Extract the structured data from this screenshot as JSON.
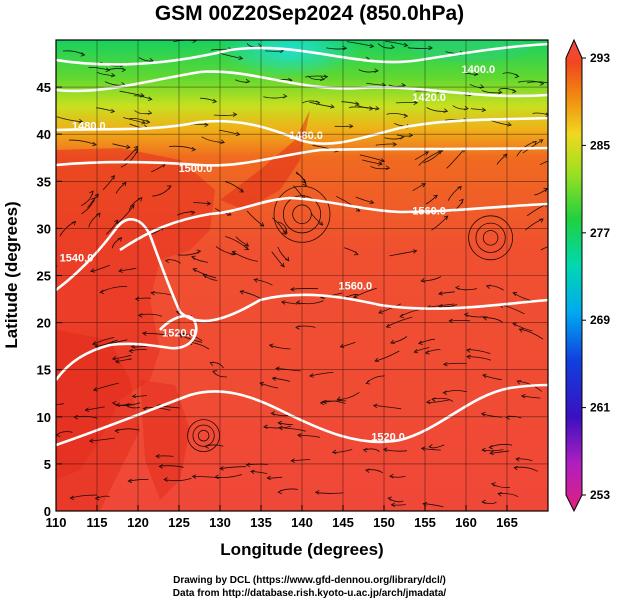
{
  "title": "GSM 00Z20Sep2024 (850.0hPa)",
  "xlabel": "Longitude (degrees)",
  "ylabel": "Latitude (degrees)",
  "credits": {
    "line1": "Drawing by DCL (https://www.gfd-dennou.org/library/dcl/)",
    "line2": "Data from http://database.rish.kyoto-u.ac.jp/arch/jmadata/"
  },
  "chart_data": {
    "type": "heatmap",
    "x_range": [
      110,
      170
    ],
    "y_range": [
      0,
      50
    ],
    "x_ticks": [
      110,
      115,
      120,
      125,
      130,
      135,
      140,
      145,
      150,
      155,
      160,
      165
    ],
    "y_ticks": [
      0,
      5,
      10,
      15,
      20,
      25,
      30,
      35,
      40,
      45
    ],
    "grid": true,
    "colorbar": {
      "min": 253,
      "max": 293,
      "tick_labels": [
        "293",
        "285",
        "277",
        "269",
        "261",
        "253"
      ],
      "colors": [
        "#e0207a",
        "#b81fb0",
        "#4a10b8",
        "#2030d8",
        "#1070f0",
        "#00b0f0",
        "#00d8b8",
        "#20d040",
        "#60d830",
        "#b0e020",
        "#f0e020",
        "#f8b010",
        "#f07010",
        "#f04020",
        "#f04848"
      ],
      "placement": "right"
    },
    "contours": [
      {
        "label": "1400.0",
        "lon": 161.5,
        "lat": 46.5
      },
      {
        "label": "1420.0",
        "lon": 155.5,
        "lat": 43.5
      },
      {
        "label": "1480.0",
        "lon": 114,
        "lat": 40.5
      },
      {
        "label": "1480.0",
        "lon": 140.5,
        "lat": 39.5
      },
      {
        "label": "1500.0",
        "lon": 127,
        "lat": 36
      },
      {
        "label": "1560.0",
        "lon": 155.5,
        "lat": 31.5
      },
      {
        "label": "1560.0",
        "lon": 146.5,
        "lat": 23.5
      },
      {
        "label": "1540.0",
        "lon": 112.5,
        "lat": 26.5
      },
      {
        "label": "1520.0",
        "lon": 125,
        "lat": 18.5
      },
      {
        "label": "1520.0",
        "lon": 150.5,
        "lat": 7.5
      }
    ]
  }
}
